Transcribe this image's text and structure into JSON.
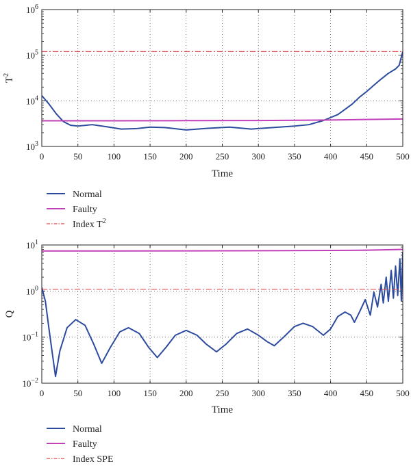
{
  "chart_data": [
    {
      "type": "line",
      "yscale": "log",
      "xlabel": "Time",
      "ylabel": "T",
      "ylabel_sup": "2",
      "xlim": [
        0,
        500
      ],
      "ylim": [
        1000,
        1000000
      ],
      "xticks": [
        "0",
        "50",
        "100",
        "150",
        "200",
        "250",
        "300",
        "350",
        "400",
        "450",
        "500"
      ],
      "yticks": [
        {
          "base": "10",
          "exp": "3"
        },
        {
          "base": "10",
          "exp": "4"
        },
        {
          "base": "10",
          "exp": "5"
        },
        {
          "base": "10",
          "exp": "6"
        }
      ],
      "grid": true,
      "legend_position": "below",
      "series": [
        {
          "name": "Normal",
          "color": "#2c4a9e",
          "style": "solid",
          "x": [
            0,
            10,
            20,
            30,
            40,
            50,
            70,
            90,
            110,
            130,
            150,
            170,
            200,
            230,
            260,
            290,
            320,
            350,
            370,
            390,
            410,
            420,
            430,
            440,
            450,
            460,
            470,
            480,
            490,
            495,
            500
          ],
          "y": [
            13000,
            8500,
            5200,
            3500,
            2900,
            2800,
            3000,
            2700,
            2400,
            2450,
            2650,
            2600,
            2300,
            2500,
            2650,
            2400,
            2600,
            2800,
            3000,
            3700,
            5000,
            6500,
            8500,
            12000,
            16000,
            22000,
            30000,
            40000,
            50000,
            60000,
            120000
          ]
        },
        {
          "name": "Faulty",
          "color": "#c040b8",
          "style": "solid",
          "x": [
            0,
            100,
            200,
            300,
            400,
            500
          ],
          "y": [
            3650,
            3650,
            3680,
            3700,
            3800,
            4000
          ]
        },
        {
          "name": "Index T",
          "name_sup": "2",
          "color": "#e8484d",
          "style": "dashdot",
          "x": [
            0,
            500
          ],
          "y": [
            120000,
            120000
          ]
        }
      ]
    },
    {
      "type": "line",
      "yscale": "log",
      "xlabel": "Time",
      "ylabel": "Q",
      "xlim": [
        0,
        500
      ],
      "ylim": [
        0.01,
        10
      ],
      "xticks": [
        "0",
        "50",
        "100",
        "150",
        "200",
        "250",
        "300",
        "350",
        "400",
        "450",
        "500"
      ],
      "yticks": [
        {
          "base": "10",
          "exp": "−2"
        },
        {
          "base": "10",
          "exp": "−1"
        },
        {
          "base": "10",
          "exp": "0"
        },
        {
          "base": "10",
          "exp": "1"
        }
      ],
      "grid": true,
      "legend_position": "below",
      "series": [
        {
          "name": "Normal",
          "color": "#2c4a9e",
          "style": "solid",
          "x": [
            0,
            5,
            10,
            15,
            19,
            25,
            35,
            47,
            60,
            72,
            83,
            95,
            108,
            120,
            135,
            148,
            160,
            172,
            185,
            200,
            215,
            228,
            242,
            255,
            270,
            285,
            300,
            312,
            322,
            335,
            350,
            362,
            375,
            390,
            400,
            410,
            420,
            428,
            433,
            440,
            448,
            455,
            460,
            465,
            470,
            473,
            477,
            480,
            484,
            487,
            490,
            493,
            496,
            498,
            500
          ],
          "y": [
            1.2,
            0.6,
            0.15,
            0.04,
            0.014,
            0.05,
            0.16,
            0.24,
            0.18,
            0.07,
            0.027,
            0.06,
            0.13,
            0.16,
            0.12,
            0.06,
            0.036,
            0.06,
            0.11,
            0.14,
            0.11,
            0.07,
            0.048,
            0.07,
            0.12,
            0.15,
            0.11,
            0.08,
            0.065,
            0.1,
            0.17,
            0.2,
            0.17,
            0.11,
            0.15,
            0.28,
            0.35,
            0.3,
            0.21,
            0.35,
            0.65,
            0.3,
            0.95,
            0.45,
            1.4,
            0.55,
            2.0,
            0.6,
            2.8,
            0.7,
            3.5,
            0.8,
            5.0,
            0.62,
            7.0
          ]
        },
        {
          "name": "Faulty",
          "color": "#c040b8",
          "style": "solid",
          "x": [
            0,
            100,
            200,
            300,
            400,
            450,
            500
          ],
          "y": [
            7.4,
            7.4,
            7.45,
            7.5,
            7.6,
            7.7,
            8.0
          ]
        },
        {
          "name": "Index SPE",
          "color": "#e8484d",
          "style": "dashdot",
          "x": [
            0,
            500
          ],
          "y": [
            1.1,
            1.1
          ]
        }
      ]
    }
  ]
}
